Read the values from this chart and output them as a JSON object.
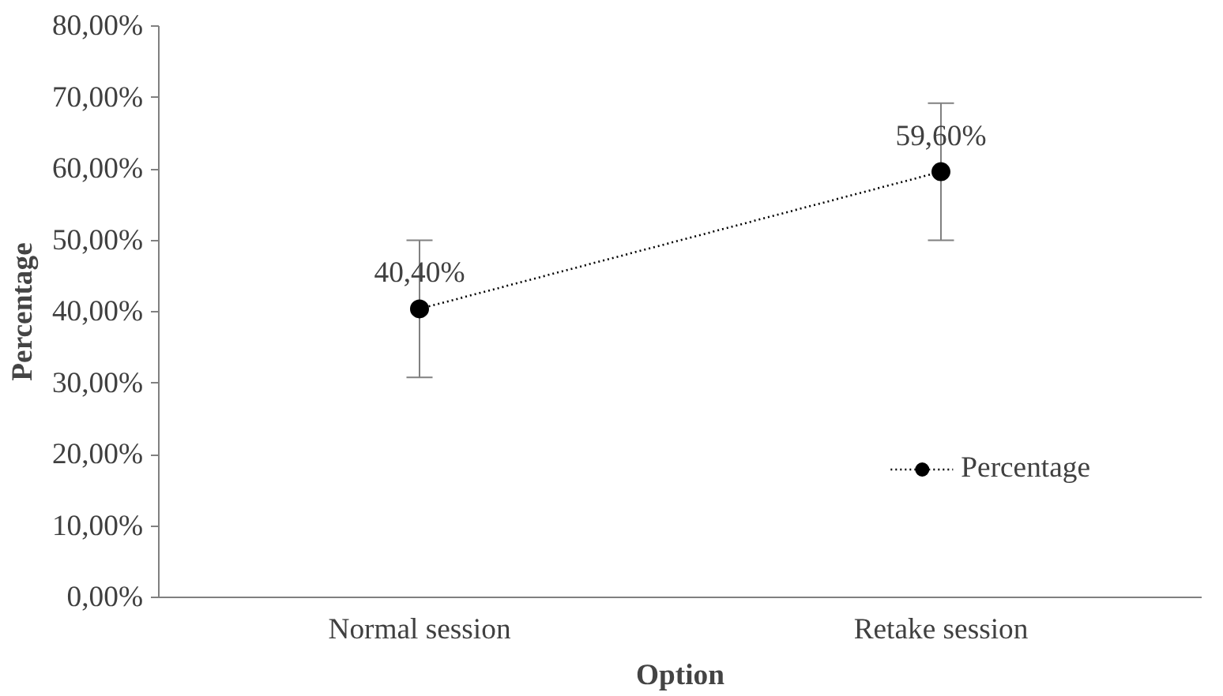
{
  "chart_data": {
    "type": "line",
    "xlabel": "Option",
    "ylabel": "Percentage",
    "categories": [
      "Normal session",
      "Retake session"
    ],
    "series": [
      {
        "name": "Percentage",
        "color": "#000000",
        "values": [
          40.4,
          59.6
        ],
        "errors": [
          9.6,
          9.6
        ],
        "value_labels": [
          "40,40%",
          "59,60%"
        ]
      }
    ],
    "ylim": [
      0,
      80
    ],
    "yticks": [
      {
        "value": 0,
        "label": "0,00%"
      },
      {
        "value": 10,
        "label": "10,00%"
      },
      {
        "value": 20,
        "label": "20,00%"
      },
      {
        "value": 30,
        "label": "30,00%"
      },
      {
        "value": 40,
        "label": "40,00%"
      },
      {
        "value": 50,
        "label": "50,00%"
      },
      {
        "value": 60,
        "label": "60,00%"
      },
      {
        "value": 70,
        "label": "70,00%"
      },
      {
        "value": 80,
        "label": "80,00%"
      }
    ],
    "grid": false,
    "legend": "bottom right",
    "marker": "circle",
    "line_style": "dotted"
  }
}
